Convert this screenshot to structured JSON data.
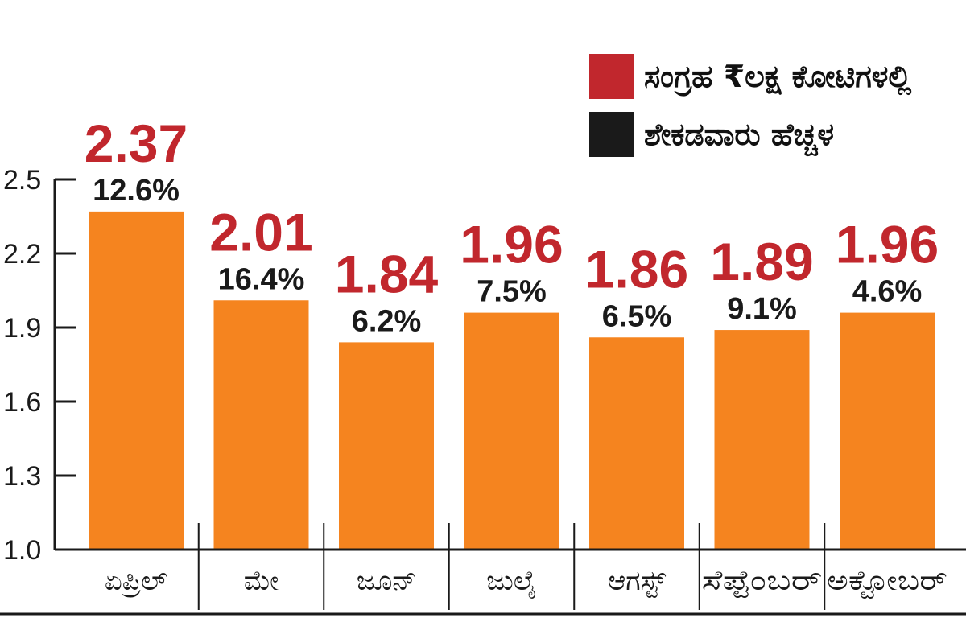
{
  "chart_data": {
    "type": "bar",
    "categories": [
      "ಏಪ್ರಿಲ್",
      "ಮೇ",
      "ಜೂನ್",
      "ಜುಲೈ",
      "ಆಗಸ್ಟ್",
      "ಸೆಪ್ಟೆಂಬರ್",
      "ಅಕ್ಟೋಬರ್"
    ],
    "series": [
      {
        "name": "ಸಂಗ್ರಹ ₹ಲಕ್ಷ ಕೋಟಿಗಳಲ್ಲಿ",
        "values": [
          2.37,
          2.01,
          1.84,
          1.96,
          1.86,
          1.89,
          1.96
        ]
      },
      {
        "name": "ಶೇಕಡವಾರು ಹೆಚ್ಚಳ",
        "values": [
          "12.6%",
          "16.4%",
          "6.2%",
          "7.5%",
          "6.5%",
          "9.1%",
          "4.6%"
        ]
      }
    ],
    "ylim": [
      1.0,
      2.5
    ],
    "yticks": [
      "1.0",
      "1.3",
      "1.6",
      "1.9",
      "2.2",
      "2.5"
    ],
    "title": "",
    "xlabel": "",
    "ylabel": "",
    "legend_position": "top-right",
    "grid": false
  },
  "colors": {
    "bar": "#F5841F",
    "value_label": "#C1272D",
    "percent_label": "#1A1A1A",
    "legend_red": "#C1272D",
    "legend_black": "#1A1A1A",
    "axis": "#1A1A1A"
  }
}
